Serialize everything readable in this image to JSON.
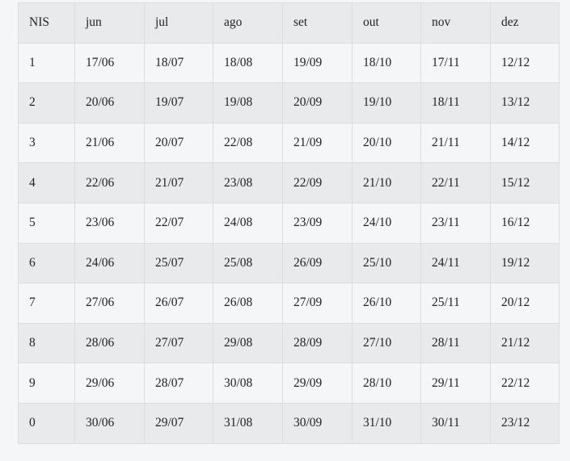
{
  "table": {
    "headers": [
      "NIS",
      "jun",
      "jul",
      "ago",
      "set",
      "out",
      "nov",
      "dez"
    ],
    "rows": [
      [
        "1",
        "17/06",
        "18/07",
        "18/08",
        "19/09",
        "18/10",
        "17/11",
        "12/12"
      ],
      [
        "2",
        "20/06",
        "19/07",
        "19/08",
        "20/09",
        "19/10",
        "18/11",
        "13/12"
      ],
      [
        "3",
        "21/06",
        "20/07",
        "22/08",
        "21/09",
        "20/10",
        "21/11",
        "14/12"
      ],
      [
        "4",
        "22/06",
        "21/07",
        "23/08",
        "22/09",
        "21/10",
        "22/11",
        "15/12"
      ],
      [
        "5",
        "23/06",
        "22/07",
        "24/08",
        "23/09",
        "24/10",
        "23/11",
        "16/12"
      ],
      [
        "6",
        "24/06",
        "25/07",
        "25/08",
        "26/09",
        "25/10",
        "24/11",
        "19/12"
      ],
      [
        "7",
        "27/06",
        "26/07",
        "26/08",
        "27/09",
        "26/10",
        "25/11",
        "20/12"
      ],
      [
        "8",
        "28/06",
        "27/07",
        "29/08",
        "28/09",
        "27/10",
        "28/11",
        "21/12"
      ],
      [
        "9",
        "29/06",
        "28/07",
        "30/08",
        "29/09",
        "28/10",
        "29/11",
        "22/12"
      ],
      [
        "0",
        "30/06",
        "29/07",
        "31/08",
        "30/09",
        "31/10",
        "30/11",
        "23/12"
      ]
    ]
  }
}
